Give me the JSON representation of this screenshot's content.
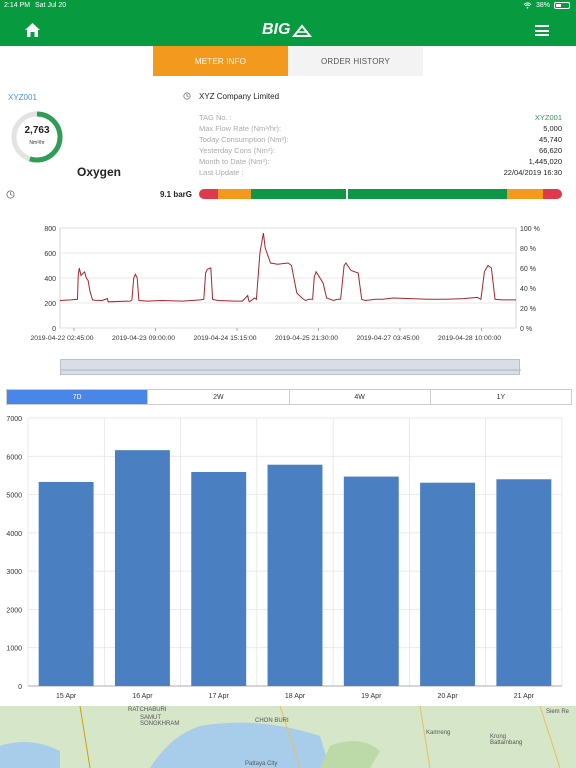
{
  "status": {
    "time": "2:14 PM",
    "date": "Sat Jul 20",
    "battery": "38%"
  },
  "header": {
    "logo": "BIG"
  },
  "tabs": {
    "meter_info": "METER INFO",
    "order_history": "ORDER HISTORY"
  },
  "meter": {
    "id": "XYZ001",
    "flow_value": "2,763",
    "flow_unit": "Nm³/hr",
    "flow_fraction": 0.55,
    "gas": "Oxygen",
    "company": "XYZ Company Limited",
    "info": [
      {
        "label": "TAG No. :",
        "value": "XYZ001"
      },
      {
        "label": "Max Flow Rate (Nm³/hr):",
        "value": "5,000"
      },
      {
        "label": "Today Consumption (Nm³):",
        "value": "45,740"
      },
      {
        "label": "Yesterday Cons (Nm³):",
        "value": "66,620"
      },
      {
        "label": "Month to Date (Nm³):",
        "value": "1,445,020"
      },
      {
        "label": "Last Update :",
        "value": "22/04/2019 16:30"
      }
    ],
    "pressure": "9.1 barG",
    "colors": {
      "red": "#e0384c",
      "orange": "#f39a1e",
      "green": "#0d9645",
      "accent": "#079a3f"
    }
  },
  "chart_data": [
    {
      "type": "line",
      "y_left_ticks": [
        "0",
        "200",
        "400",
        "600",
        "800"
      ],
      "y_right_ticks": [
        "0 %",
        "20 %",
        "40 %",
        "60 %",
        "80 %",
        "100 %"
      ],
      "x_ticks": [
        "2019-04-22 02:45:00",
        "2019-04-23 09:00:00",
        "2019-04-24 15:15:00",
        "2019-04-25 21:30:00",
        "2019-04-27 03:45:00",
        "2019-04-28 10:00:00"
      ],
      "ylim": [
        0,
        800
      ],
      "grid": true,
      "series": [
        {
          "color": "#a3282b",
          "values": [
            [
              0,
              220
            ],
            [
              0.03,
              225
            ],
            [
              0.05,
              230
            ],
            [
              0.052,
              420
            ],
            [
              0.055,
              480
            ],
            [
              0.06,
              420
            ],
            [
              0.07,
              450
            ],
            [
              0.075,
              400
            ],
            [
              0.08,
              380
            ],
            [
              0.085,
              300
            ],
            [
              0.09,
              250
            ],
            [
              0.093,
              225
            ],
            [
              0.1,
              222
            ],
            [
              0.12,
              220
            ],
            [
              0.135,
              235
            ],
            [
              0.137,
              210
            ],
            [
              0.2,
              215
            ],
            [
              0.205,
              225
            ],
            [
              0.21,
              400
            ],
            [
              0.215,
              430
            ],
            [
              0.22,
              400
            ],
            [
              0.225,
              220
            ],
            [
              0.25,
              215
            ],
            [
              0.29,
              220
            ],
            [
              0.35,
              215
            ],
            [
              0.4,
              225
            ],
            [
              0.41,
              230
            ],
            [
              0.415,
              440
            ],
            [
              0.42,
              470
            ],
            [
              0.43,
              480
            ],
            [
              0.435,
              230
            ],
            [
              0.45,
              220
            ],
            [
              0.5,
              215
            ],
            [
              0.52,
              215
            ],
            [
              0.535,
              260
            ],
            [
              0.538,
              220
            ],
            [
              0.54,
              210
            ],
            [
              0.55,
              230
            ],
            [
              0.555,
              240
            ],
            [
              0.56,
              230
            ],
            [
              0.57,
              600
            ],
            [
              0.58,
              760
            ],
            [
              0.585,
              640
            ],
            [
              0.6,
              520
            ],
            [
              0.62,
              510
            ],
            [
              0.65,
              520
            ],
            [
              0.66,
              500
            ],
            [
              0.675,
              280
            ],
            [
              0.69,
              240
            ],
            [
              0.7,
              220
            ],
            [
              0.71,
              230
            ],
            [
              0.72,
              230
            ],
            [
              0.725,
              410
            ],
            [
              0.73,
              450
            ],
            [
              0.75,
              360
            ],
            [
              0.76,
              240
            ],
            [
              0.78,
              220
            ],
            [
              0.79,
              230
            ],
            [
              0.8,
              230
            ],
            [
              0.81,
              500
            ],
            [
              0.815,
              520
            ],
            [
              0.83,
              460
            ],
            [
              0.85,
              440
            ],
            [
              0.86,
              230
            ],
            [
              0.87,
              220
            ],
            [
              0.9,
              230
            ],
            [
              0.92,
              230
            ],
            [
              0.95,
              240
            ],
            [
              1.0,
              235
            ],
            [
              1.05,
              230
            ],
            [
              1.1,
              230
            ],
            [
              1.15,
              235
            ],
            [
              1.19,
              245
            ],
            [
              1.2,
              230
            ],
            [
              1.21,
              450
            ],
            [
              1.22,
              500
            ],
            [
              1.23,
              480
            ],
            [
              1.24,
              230
            ],
            [
              1.26,
              225
            ],
            [
              1.3,
              225
            ]
          ]
        }
      ]
    },
    {
      "type": "bar",
      "categories": [
        "15 Apr",
        "16 Apr",
        "17 Apr",
        "18 Apr",
        "19 Apr",
        "20 Apr",
        "21 Apr"
      ],
      "values": [
        5330,
        6160,
        5590,
        5780,
        5470,
        5310,
        5400
      ],
      "y_ticks": [
        "0",
        "1000",
        "2000",
        "3000",
        "4000",
        "5000",
        "6000",
        "7000"
      ],
      "ylim": [
        0,
        7000
      ],
      "color": "#4a7fc1",
      "grid": true
    }
  ],
  "period_selector": {
    "options": [
      "7D",
      "2W",
      "4W",
      "1Y"
    ],
    "selected": "7D"
  },
  "map": {
    "labels": [
      "RATCHABURI",
      "SAMUT SONGKHRAM",
      "CHON BURI",
      "Pattaya City",
      "Krong Battambang",
      "Siem Re",
      "Kamreng"
    ]
  }
}
